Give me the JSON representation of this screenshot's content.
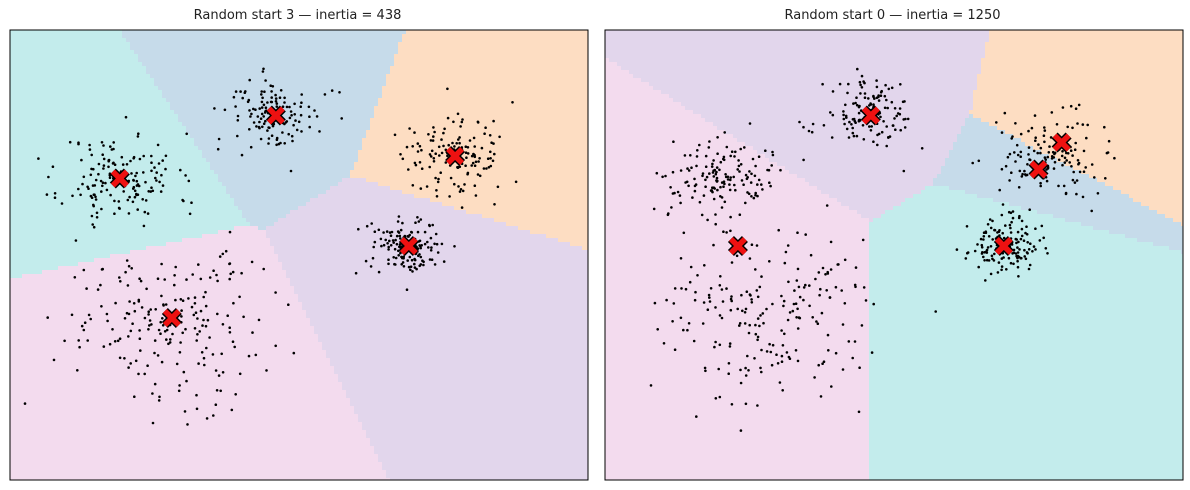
{
  "chart_data": [
    {
      "type": "scatter",
      "title": "Random start 3 — inertia = 438",
      "xlabel": "",
      "ylabel": "",
      "xlim": [
        0,
        100
      ],
      "ylim": [
        0,
        100
      ],
      "grid": false,
      "axis_ticks": false,
      "region_colors": [
        "#c3ecec",
        "#c6dbea",
        "#fdddc2",
        "#e2d6ec",
        "#f3dbee"
      ],
      "point_color": "#000000",
      "centroid_color": "#ee1111",
      "centroid_edge": "#000000",
      "centroids": [
        {
          "x": 19,
          "y": 67
        },
        {
          "x": 46,
          "y": 81
        },
        {
          "x": 77,
          "y": 72
        },
        {
          "x": 69,
          "y": 52
        },
        {
          "x": 28,
          "y": 36
        }
      ],
      "blobs": [
        {
          "cx": 19,
          "cy": 67,
          "sx": 5,
          "sy": 5,
          "n": 150,
          "seed": 11
        },
        {
          "cx": 46,
          "cy": 81,
          "sx": 4,
          "sy": 4,
          "n": 130,
          "seed": 12
        },
        {
          "cx": 77,
          "cy": 72,
          "sx": 4.5,
          "sy": 4.5,
          "n": 140,
          "seed": 13
        },
        {
          "cx": 69,
          "cy": 52,
          "sx": 3,
          "sy": 3,
          "n": 150,
          "seed": 14
        },
        {
          "cx": 28,
          "cy": 36,
          "sx": 9,
          "sy": 9,
          "n": 210,
          "seed": 15
        }
      ]
    },
    {
      "type": "scatter",
      "title": "Random start 0 — inertia = 1250",
      "xlabel": "",
      "ylabel": "",
      "xlim": [
        0,
        100
      ],
      "ylim": [
        0,
        100
      ],
      "grid": false,
      "axis_ticks": false,
      "region_colors": [
        "#e2d6ec",
        "#fdddc2",
        "#c6dbea",
        "#c3ecec",
        "#f3dbee"
      ],
      "point_color": "#000000",
      "centroid_color": "#ee1111",
      "centroid_edge": "#000000",
      "centroids": [
        {
          "x": 46,
          "y": 81
        },
        {
          "x": 79,
          "y": 75
        },
        {
          "x": 75,
          "y": 69
        },
        {
          "x": 69,
          "y": 52
        },
        {
          "x": 23,
          "y": 52
        }
      ],
      "blobs": [
        {
          "cx": 46,
          "cy": 81,
          "sx": 4,
          "sy": 4,
          "n": 130,
          "seed": 21
        },
        {
          "cx": 77,
          "cy": 72,
          "sx": 4.5,
          "sy": 4.5,
          "n": 140,
          "seed": 22
        },
        {
          "cx": 69,
          "cy": 52,
          "sx": 3,
          "sy": 3,
          "n": 150,
          "seed": 23
        },
        {
          "cx": 19,
          "cy": 67,
          "sx": 5,
          "sy": 5,
          "n": 150,
          "seed": 24
        },
        {
          "cx": 28,
          "cy": 36,
          "sx": 9,
          "sy": 9,
          "n": 210,
          "seed": 25
        }
      ]
    }
  ]
}
